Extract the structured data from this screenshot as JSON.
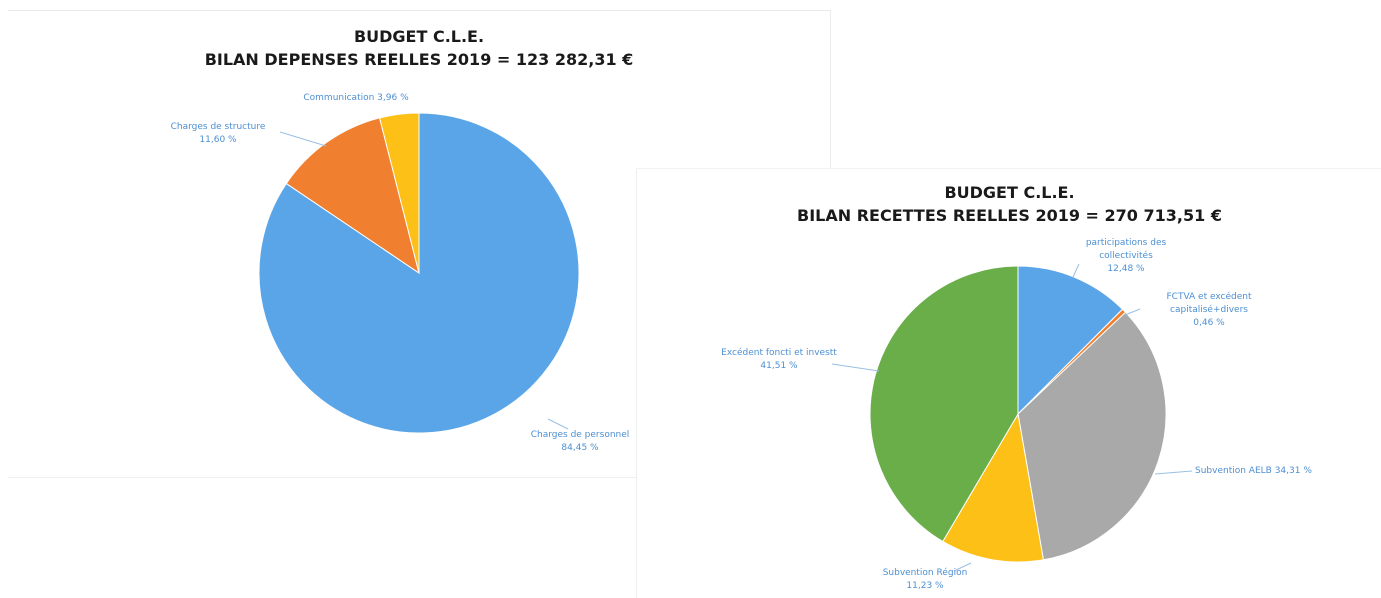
{
  "chart_data": [
    {
      "type": "pie",
      "title": "BUDGET C.L.E.",
      "subtitle": "BILAN DEPENSES REELLES 2019 = 123 282,31 €",
      "start_angle_deg": 0,
      "direction": "clockwise",
      "slices": [
        {
          "name": "Charges de personnel",
          "value": 84.45,
          "label_lines": [
            "Charges de personnel",
            "84,45 %"
          ],
          "color": "#5aa5e8"
        },
        {
          "name": "Charges de structure",
          "value": 11.6,
          "label_lines": [
            "Charges de structure",
            "11,60 %"
          ],
          "color": "#f07f2f"
        },
        {
          "name": "Communication",
          "value": 3.96,
          "label_lines": [
            "Communication 3,96 %"
          ],
          "color": "#fcc017"
        }
      ]
    },
    {
      "type": "pie",
      "title": "BUDGET C.L.E.",
      "subtitle": "BILAN RECETTES REELLES 2019 = 270 713,51 €",
      "start_angle_deg": 0,
      "direction": "clockwise",
      "slices": [
        {
          "name": "participations des collectivités",
          "value": 12.48,
          "label_lines": [
            "participations des",
            "collectivités",
            "12,48 %"
          ],
          "color": "#5aa5e8"
        },
        {
          "name": "FCTVA et excédent capitalisé+divers",
          "value": 0.46,
          "label_lines": [
            "FCTVA et excédent",
            "capitalisé+divers",
            "0,46 %"
          ],
          "color": "#f07f2f"
        },
        {
          "name": "Subvention AELB",
          "value": 34.31,
          "label_lines": [
            "Subvention AELB 34,31 %"
          ],
          "color": "#a9a9a9"
        },
        {
          "name": "Subvention Région",
          "value": 11.23,
          "label_lines": [
            "Subvention Région",
            "11,23 %"
          ],
          "color": "#fcc017"
        },
        {
          "name": "Excédent foncti et investt",
          "value": 41.51,
          "label_lines": [
            "Excédent foncti et investt",
            "41,51 %"
          ],
          "color": "#6aae4a"
        }
      ]
    }
  ],
  "colors": {
    "label_text": "#4d8fd2",
    "leader_line": "#9bbfe3",
    "title_text": "#1a1a1a"
  }
}
